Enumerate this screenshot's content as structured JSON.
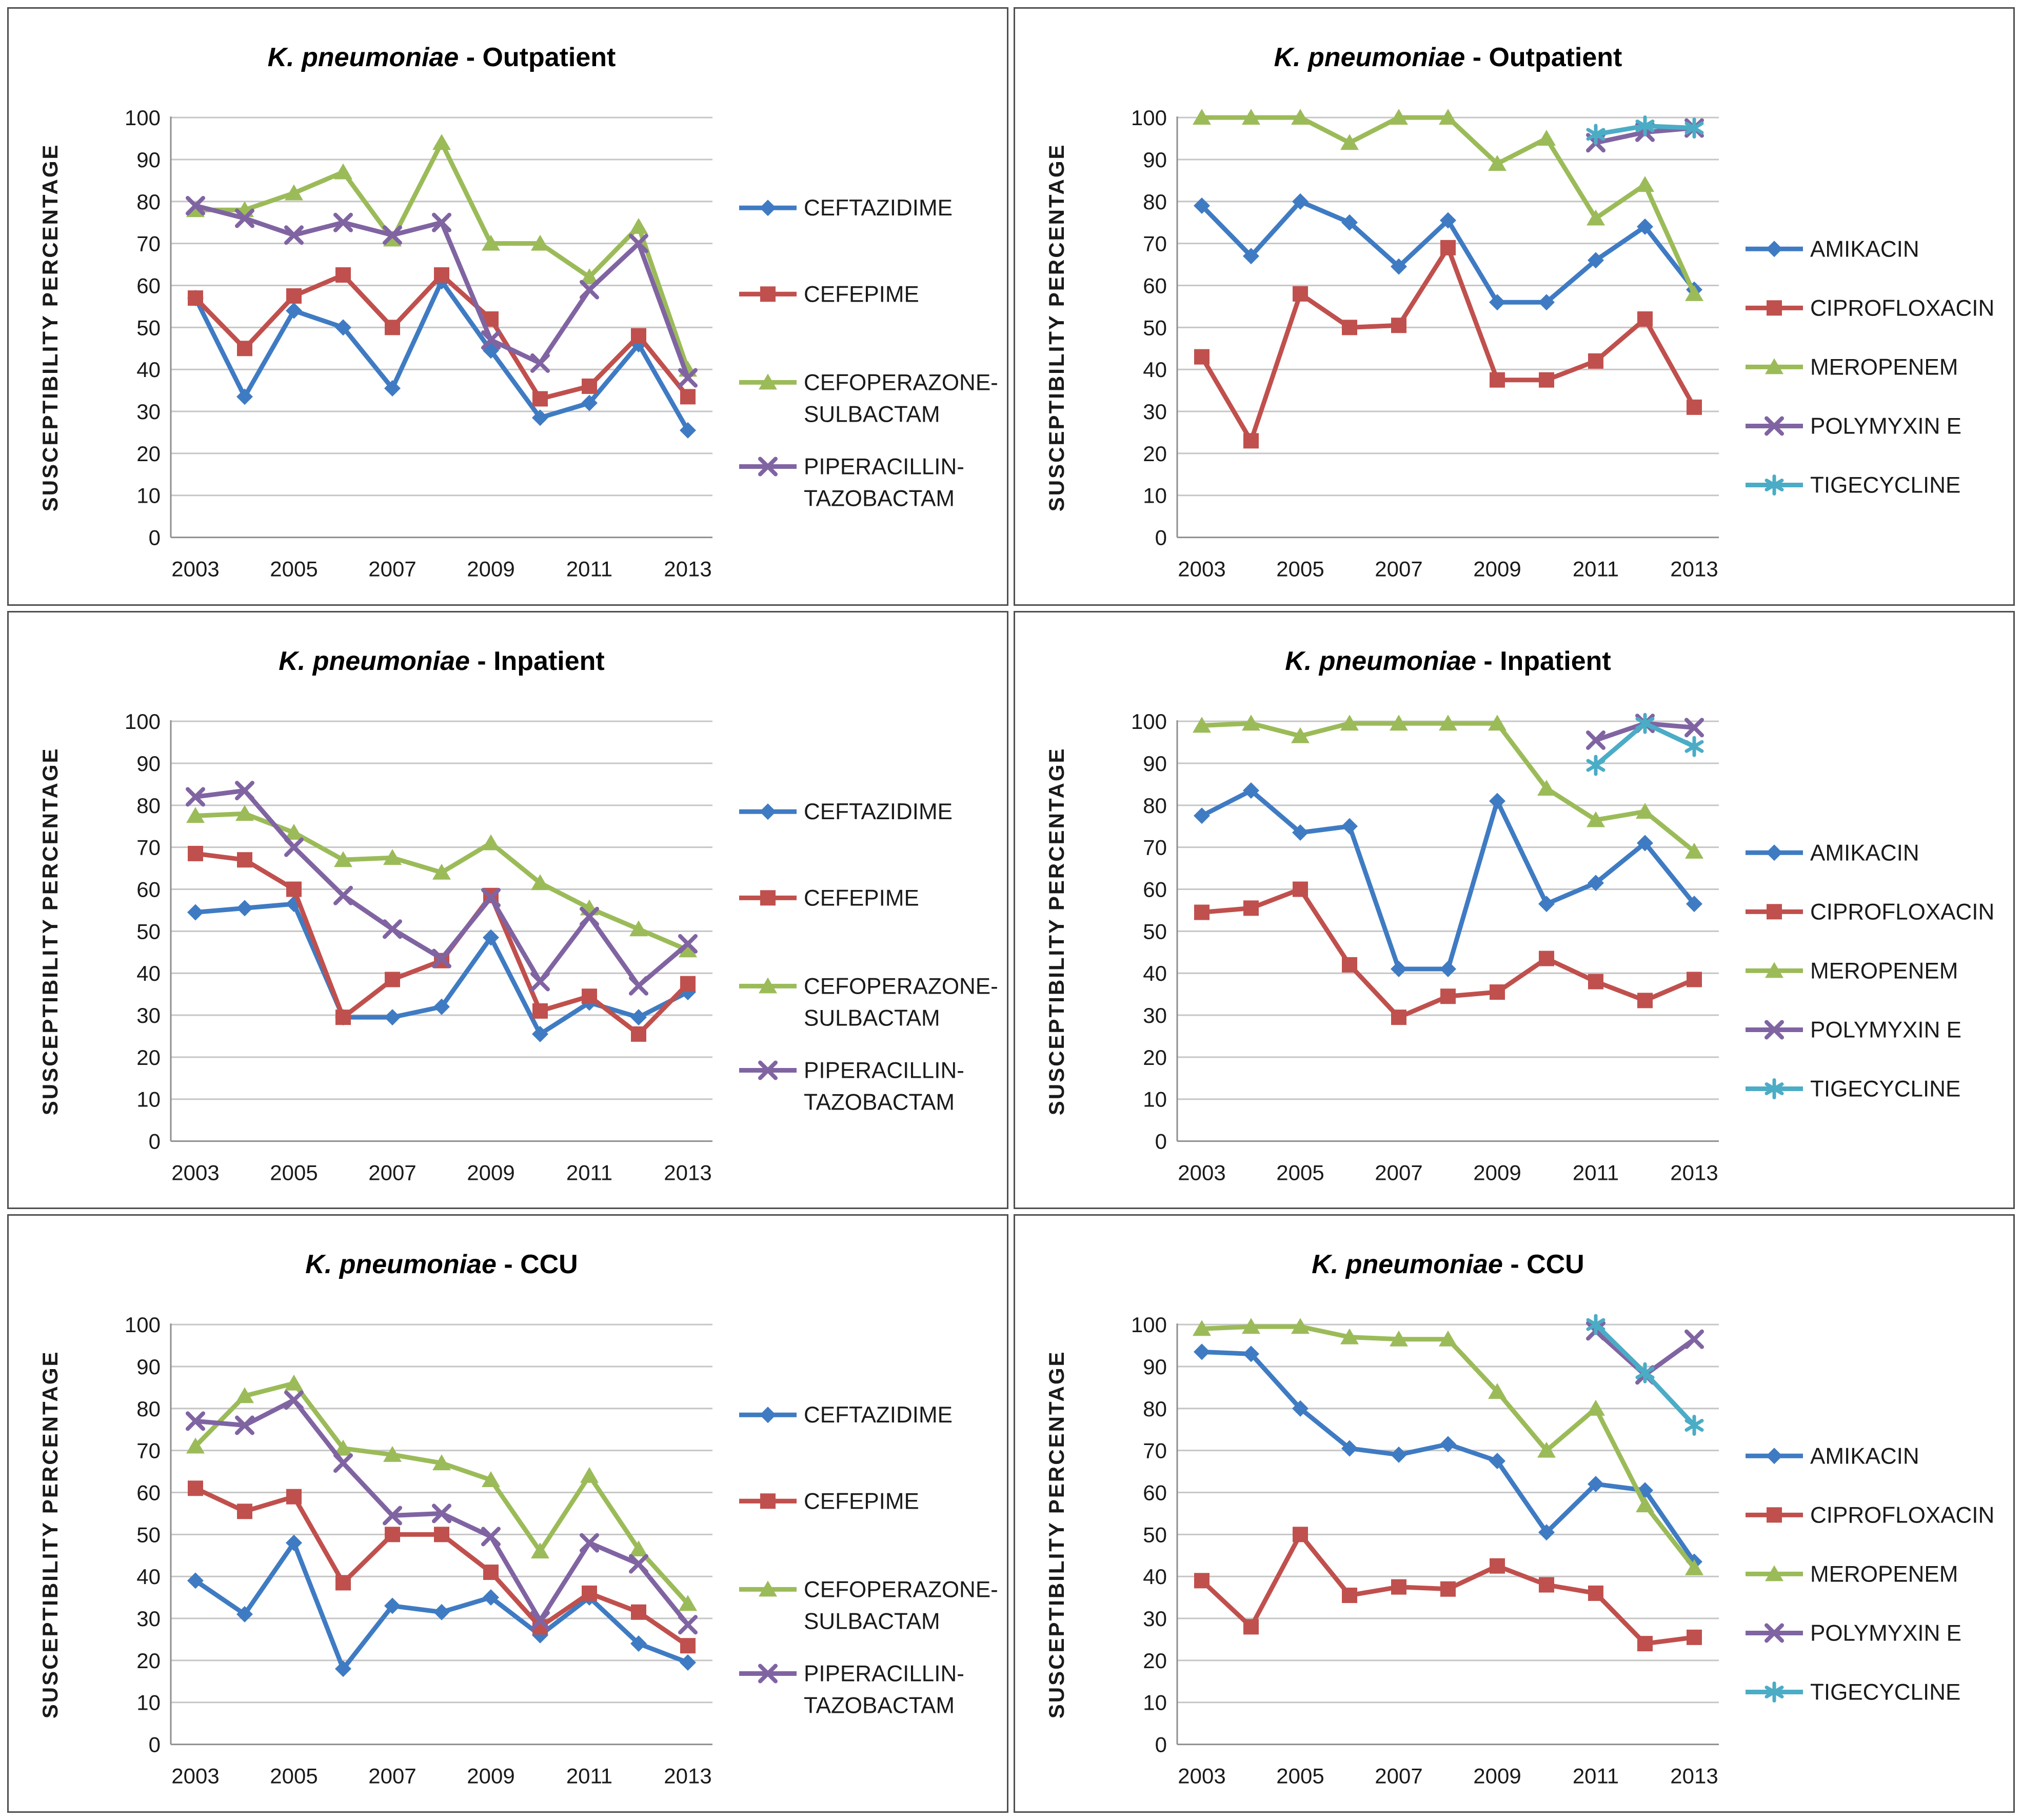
{
  "figure": {
    "ylabel": "SUSCEPTIBILITY  PERCENTAGE",
    "x_years": [
      2003,
      2004,
      2005,
      2006,
      2007,
      2008,
      2009,
      2010,
      2011,
      2012,
      2013
    ],
    "x_tick_labels": [
      "2003",
      "2005",
      "2007",
      "2009",
      "2011",
      "2013"
    ],
    "y_ticks": [
      0,
      10,
      20,
      30,
      40,
      50,
      60,
      70,
      80,
      90,
      100
    ]
  },
  "colors": {
    "blue": "#3F7BC3",
    "red": "#C0504D",
    "green": "#9BBB59",
    "purple": "#8064A2",
    "cyan": "#4BACC6",
    "grid": "#C6C6C6",
    "axis": "#8F8F8F",
    "text": "#1A1A1A",
    "border": "#4f4f4f"
  },
  "chart_data": [
    {
      "type": "line",
      "panel": "outpatient-left",
      "title_italic": "K. pneumoniae",
      "title_rest": " - Outpatient",
      "ylabel": "SUSCEPTIBILITY  PERCENTAGE",
      "ylim": [
        0,
        100
      ],
      "grid": true,
      "legend_position": "right",
      "x": [
        2003,
        2004,
        2005,
        2006,
        2007,
        2008,
        2009,
        2010,
        2011,
        2012,
        2013
      ],
      "series": [
        {
          "name": "CEFTAZIDIME",
          "color": "blue",
          "marker": "diamond",
          "legend_lines": [
            "CEFTAZIDIME"
          ],
          "values": [
            57,
            33.5,
            54,
            50,
            35.5,
            61,
            44.5,
            28.5,
            32,
            46,
            25.5
          ]
        },
        {
          "name": "CEFEPIME",
          "color": "red",
          "marker": "square",
          "legend_lines": [
            "CEFEPIME"
          ],
          "values": [
            57,
            45,
            57.5,
            62.5,
            50,
            62.5,
            52,
            33,
            36,
            48,
            33.5
          ]
        },
        {
          "name": "CEFOPERAZONE-SULBACTAM",
          "color": "green",
          "marker": "triangle",
          "legend_lines": [
            "CEFOPERAZONE-",
            "SULBACTAM"
          ],
          "values": [
            78,
            78,
            82,
            87,
            71,
            94,
            70,
            70,
            62,
            74,
            40
          ]
        },
        {
          "name": "PIPERACILLIN-TAZOBACTAM",
          "color": "purple",
          "marker": "x",
          "legend_lines": [
            "PIPERACILLIN-",
            "TAZOBACTAM"
          ],
          "values": [
            79,
            76,
            72,
            75,
            72,
            75,
            47,
            41.5,
            59,
            70,
            38
          ]
        }
      ]
    },
    {
      "type": "line",
      "panel": "outpatient-right",
      "title_italic": "K. pneumoniae",
      "title_rest": " - Outpatient",
      "ylabel": "SUSCEPTIBILITY  PERCENTAGE",
      "ylim": [
        0,
        100
      ],
      "grid": true,
      "legend_position": "right",
      "x": [
        2003,
        2004,
        2005,
        2006,
        2007,
        2008,
        2009,
        2010,
        2011,
        2012,
        2013
      ],
      "series": [
        {
          "name": "AMIKACIN",
          "color": "blue",
          "marker": "diamond",
          "legend_lines": [
            "AMIKACIN"
          ],
          "values": [
            79,
            67,
            80,
            75,
            64.5,
            75.5,
            56,
            56,
            66,
            74,
            59
          ]
        },
        {
          "name": "CIPROFLOXACIN",
          "color": "red",
          "marker": "square",
          "legend_lines": [
            "CIPROFLOXACIN"
          ],
          "values": [
            43,
            23,
            58,
            50,
            50.5,
            69,
            37.5,
            37.5,
            42,
            52,
            31
          ]
        },
        {
          "name": "MEROPENEM",
          "color": "green",
          "marker": "triangle",
          "legend_lines": [
            "MEROPENEM"
          ],
          "values": [
            100,
            100,
            100,
            94,
            100,
            100,
            89,
            95,
            76,
            84,
            58
          ]
        },
        {
          "name": "POLYMYXIN E",
          "color": "purple",
          "marker": "x",
          "legend_lines": [
            "POLYMYXIN E"
          ],
          "values": [
            null,
            null,
            null,
            null,
            null,
            null,
            null,
            null,
            94,
            96.5,
            97.5
          ]
        },
        {
          "name": "TIGECYCLINE",
          "color": "cyan",
          "marker": "asterisk",
          "legend_lines": [
            "TIGECYCLINE"
          ],
          "values": [
            null,
            null,
            null,
            null,
            null,
            null,
            null,
            null,
            96,
            98,
            97.5
          ]
        }
      ]
    },
    {
      "type": "line",
      "panel": "inpatient-left",
      "title_italic": "K. pneumoniae",
      "title_rest": " - Inpatient",
      "ylabel": "SUSCEPTIBILITY  PERCENTAGE",
      "ylim": [
        0,
        100
      ],
      "grid": true,
      "legend_position": "right",
      "x": [
        2003,
        2004,
        2005,
        2006,
        2007,
        2008,
        2009,
        2010,
        2011,
        2012,
        2013
      ],
      "series": [
        {
          "name": "CEFTAZIDIME",
          "color": "blue",
          "marker": "diamond",
          "legend_lines": [
            "CEFTAZIDIME"
          ],
          "values": [
            54.5,
            55.5,
            56.5,
            29.5,
            29.5,
            32,
            48.5,
            25.5,
            33,
            29.5,
            35.5
          ]
        },
        {
          "name": "CEFEPIME",
          "color": "red",
          "marker": "square",
          "legend_lines": [
            "CEFEPIME"
          ],
          "values": [
            68.5,
            67,
            60,
            29.5,
            38.5,
            43,
            58.5,
            31,
            34.5,
            25.5,
            37.5
          ]
        },
        {
          "name": "CEFOPERAZONE-SULBACTAM",
          "color": "green",
          "marker": "triangle",
          "legend_lines": [
            "CEFOPERAZONE-",
            "SULBACTAM"
          ],
          "values": [
            77.5,
            78,
            73.5,
            67,
            67.5,
            64,
            71,
            61.5,
            55.5,
            50.5,
            45.5
          ]
        },
        {
          "name": "PIPERACILLIN-TAZOBACTAM",
          "color": "purple",
          "marker": "x",
          "legend_lines": [
            "PIPERACILLIN-",
            "TAZOBACTAM"
          ],
          "values": [
            82,
            83.5,
            70,
            58.5,
            50.5,
            43.5,
            58,
            38,
            53.5,
            37,
            47
          ]
        }
      ]
    },
    {
      "type": "line",
      "panel": "inpatient-right",
      "title_italic": "K. pneumoniae",
      "title_rest": " - Inpatient",
      "ylabel": "SUSCEPTIBILITY  PERCENTAGE",
      "ylim": [
        0,
        100
      ],
      "grid": true,
      "legend_position": "right",
      "x": [
        2003,
        2004,
        2005,
        2006,
        2007,
        2008,
        2009,
        2010,
        2011,
        2012,
        2013
      ],
      "series": [
        {
          "name": "AMIKACIN",
          "color": "blue",
          "marker": "diamond",
          "legend_lines": [
            "AMIKACIN"
          ],
          "values": [
            77.5,
            83.5,
            73.5,
            75,
            41,
            41,
            81,
            56.5,
            61.5,
            71,
            56.5
          ]
        },
        {
          "name": "CIPROFLOXACIN",
          "color": "red",
          "marker": "square",
          "legend_lines": [
            "CIPROFLOXACIN"
          ],
          "values": [
            54.5,
            55.5,
            60,
            42,
            29.5,
            34.5,
            35.5,
            43.5,
            38,
            33.5,
            38.5
          ]
        },
        {
          "name": "MEROPENEM",
          "color": "green",
          "marker": "triangle",
          "legend_lines": [
            "MEROPENEM"
          ],
          "values": [
            99,
            99.5,
            96.5,
            99.5,
            99.5,
            99.5,
            99.5,
            84,
            76.5,
            78.5,
            69
          ]
        },
        {
          "name": "POLYMYXIN E",
          "color": "purple",
          "marker": "x",
          "legend_lines": [
            "POLYMYXIN E"
          ],
          "values": [
            null,
            null,
            null,
            null,
            null,
            null,
            null,
            null,
            95.5,
            99.5,
            98.5
          ]
        },
        {
          "name": "TIGECYCLINE",
          "color": "cyan",
          "marker": "asterisk",
          "legend_lines": [
            "TIGECYCLINE"
          ],
          "values": [
            null,
            null,
            null,
            null,
            null,
            null,
            null,
            null,
            89.5,
            99.5,
            94
          ]
        }
      ]
    },
    {
      "type": "line",
      "panel": "ccu-left",
      "title_italic": "K. pneumoniae",
      "title_rest": " - CCU",
      "ylabel": "SUSCEPTIBILITY  PERCENTAGE",
      "ylim": [
        0,
        100
      ],
      "grid": true,
      "legend_position": "right",
      "x": [
        2003,
        2004,
        2005,
        2006,
        2007,
        2008,
        2009,
        2010,
        2011,
        2012,
        2013
      ],
      "series": [
        {
          "name": "CEFTAZIDIME",
          "color": "blue",
          "marker": "diamond",
          "legend_lines": [
            "CEFTAZIDIME"
          ],
          "values": [
            39,
            31,
            48,
            18,
            33,
            31.5,
            35,
            26,
            35,
            24,
            19.5
          ]
        },
        {
          "name": "CEFEPIME",
          "color": "red",
          "marker": "square",
          "legend_lines": [
            "CEFEPIME"
          ],
          "values": [
            61,
            55.5,
            59,
            38.5,
            50,
            50,
            41,
            28,
            36,
            31.5,
            23.5
          ]
        },
        {
          "name": "CEFOPERAZONE-SULBACTAM",
          "color": "green",
          "marker": "triangle",
          "legend_lines": [
            "CEFOPERAZONE-",
            "SULBACTAM"
          ],
          "values": [
            71,
            83,
            86,
            70.5,
            69,
            67,
            63,
            46,
            64,
            46.5,
            33.5
          ]
        },
        {
          "name": "PIPERACILLIN-TAZOBACTAM",
          "color": "purple",
          "marker": "x",
          "legend_lines": [
            "PIPERACILLIN-",
            "TAZOBACTAM"
          ],
          "values": [
            77,
            76,
            82,
            67,
            54.5,
            55,
            49.5,
            29.5,
            48,
            43,
            28.5
          ]
        }
      ]
    },
    {
      "type": "line",
      "panel": "ccu-right",
      "title_italic": "K. pneumoniae",
      "title_rest": " - CCU",
      "ylabel": "SUSCEPTIBILITY  PERCENTAGE",
      "ylim": [
        0,
        100
      ],
      "grid": true,
      "legend_position": "right",
      "x": [
        2003,
        2004,
        2005,
        2006,
        2007,
        2008,
        2009,
        2010,
        2011,
        2012,
        2013
      ],
      "series": [
        {
          "name": "AMIKACIN",
          "color": "blue",
          "marker": "diamond",
          "legend_lines": [
            "AMIKACIN"
          ],
          "values": [
            93.5,
            93,
            80,
            70.5,
            69,
            71.5,
            67.5,
            50.5,
            62,
            60.5,
            43.5
          ]
        },
        {
          "name": "CIPROFLOXACIN",
          "color": "red",
          "marker": "square",
          "legend_lines": [
            "CIPROFLOXACIN"
          ],
          "values": [
            39,
            28,
            50,
            35.5,
            37.5,
            37,
            42.5,
            38,
            36,
            24,
            25.5
          ]
        },
        {
          "name": "MEROPENEM",
          "color": "green",
          "marker": "triangle",
          "legend_lines": [
            "MEROPENEM"
          ],
          "values": [
            99,
            99.5,
            99.5,
            97,
            96.5,
            96.5,
            84,
            70,
            80,
            57,
            42
          ]
        },
        {
          "name": "POLYMYXIN E",
          "color": "purple",
          "marker": "x",
          "legend_lines": [
            "POLYMYXIN E"
          ],
          "values": [
            null,
            null,
            null,
            null,
            null,
            null,
            null,
            null,
            98.5,
            88,
            96.5
          ]
        },
        {
          "name": "TIGECYCLINE",
          "color": "cyan",
          "marker": "asterisk",
          "legend_lines": [
            "TIGECYCLINE"
          ],
          "values": [
            null,
            null,
            null,
            null,
            null,
            null,
            null,
            null,
            100,
            88.5,
            76
          ]
        }
      ]
    }
  ]
}
